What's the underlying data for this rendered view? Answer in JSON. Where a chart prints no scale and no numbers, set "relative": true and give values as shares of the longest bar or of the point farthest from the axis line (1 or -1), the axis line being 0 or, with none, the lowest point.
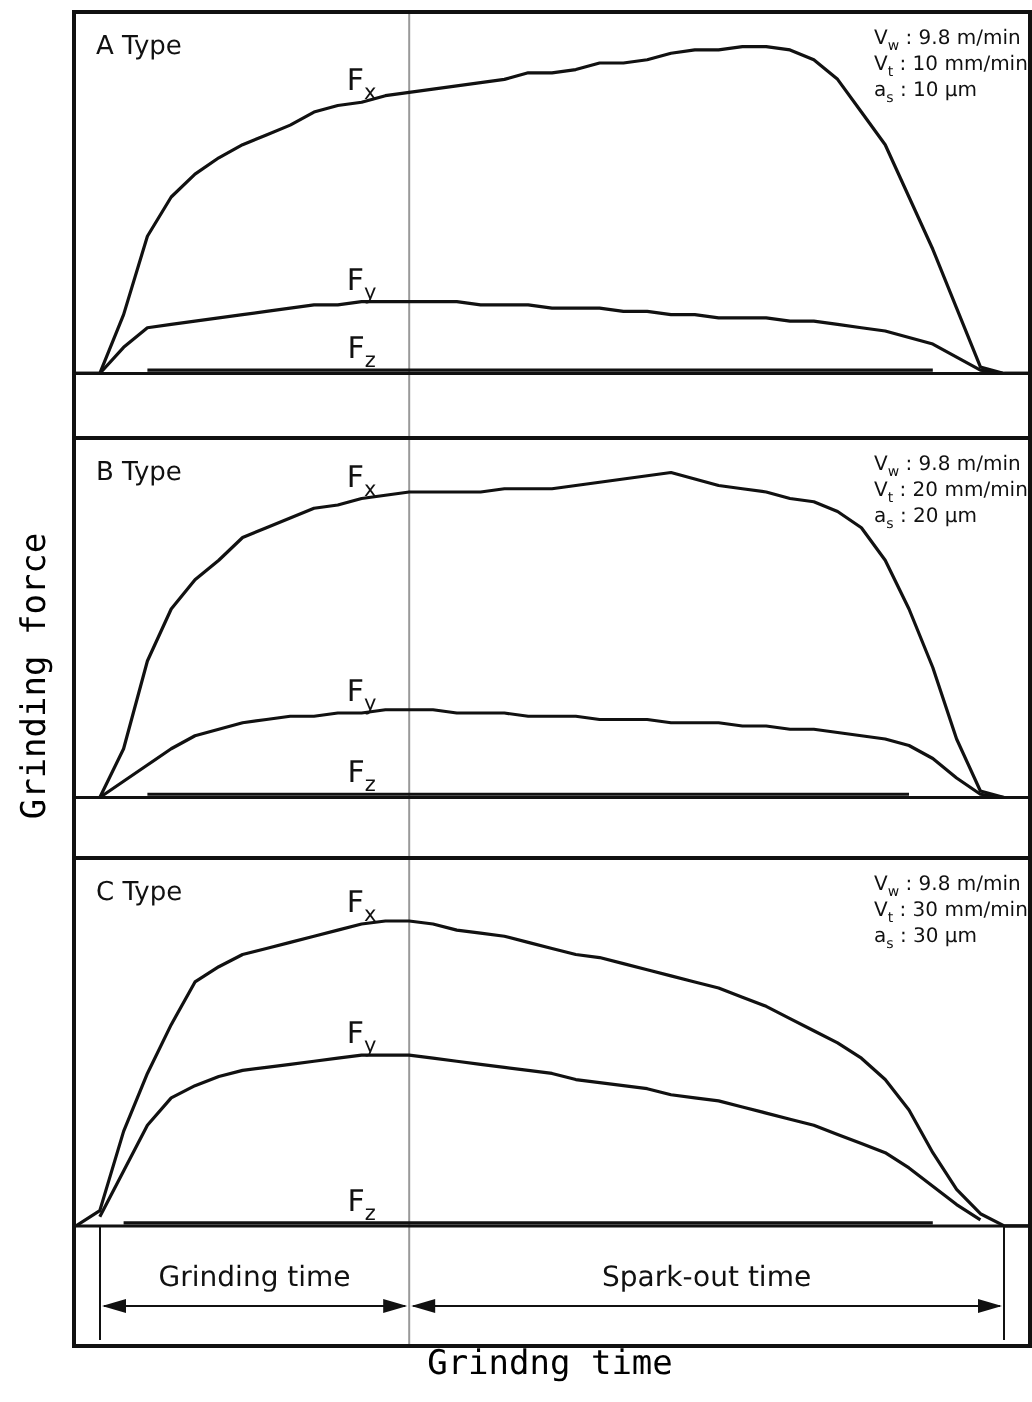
{
  "chart_data": [
    {
      "type": "line",
      "relative": true,
      "legend": false,
      "categories": [
        null,
        null,
        null,
        null,
        null,
        null,
        null,
        null,
        null,
        null,
        null,
        null,
        null,
        null,
        null,
        null,
        null,
        null,
        null,
        null,
        null,
        null,
        null,
        null,
        null,
        null,
        null,
        null,
        null,
        null,
        null,
        null,
        null,
        null,
        null,
        null,
        null,
        null,
        null,
        null,
        null
      ],
      "annotations": [
        "A Type",
        "V$_{w}$ : 9.8 m/min",
        "V$_{t}$ : 10 mm/min",
        "a$_{s}$ : 10 μm"
      ],
      "series": [
        {
          "name": "F$_{x}$",
          "color": "#111111",
          "values": [
            0,
            0,
            0.18,
            0.42,
            0.54,
            0.61,
            0.66,
            0.7,
            0.73,
            0.76,
            0.8,
            0.82,
            0.83,
            0.85,
            0.86,
            0.87,
            0.88,
            0.89,
            0.9,
            0.92,
            0.92,
            0.93,
            0.95,
            0.95,
            0.96,
            0.98,
            0.99,
            0.99,
            1,
            1,
            0.99,
            0.96,
            0.9,
            0.8,
            0.7,
            0.54,
            0.38,
            0.2,
            0.02,
            0,
            0
          ]
        },
        {
          "name": "F$_{y}$",
          "color": "#111111",
          "values": [
            0,
            0,
            0.08,
            0.14,
            0.15,
            0.16,
            0.17,
            0.18,
            0.19,
            0.2,
            0.21,
            0.21,
            0.22,
            0.22,
            0.22,
            0.22,
            0.22,
            0.21,
            0.21,
            0.21,
            0.2,
            0.2,
            0.2,
            0.19,
            0.19,
            0.18,
            0.18,
            0.17,
            0.17,
            0.17,
            0.16,
            0.16,
            0.15,
            0.14,
            0.13,
            0.11,
            0.09,
            0.05,
            0.01,
            0,
            0
          ]
        },
        {
          "name": "F$_{z}$",
          "color": "#111111",
          "values": [
            null,
            null,
            null,
            0.01,
            0.01,
            0.01,
            0.01,
            0.01,
            0.01,
            0.01,
            0.01,
            0.01,
            0.01,
            0.01,
            0.01,
            0.01,
            0.01,
            0.01,
            0.01,
            0.01,
            0.01,
            0.01,
            0.01,
            0.01,
            0.01,
            0.01,
            0.01,
            0.01,
            0.01,
            0.01,
            0.01,
            0.01,
            0.01,
            0.01,
            0.01,
            0.01,
            0.01,
            null,
            null,
            null,
            null
          ]
        }
      ]
    },
    {
      "type": "line",
      "relative": true,
      "legend": false,
      "ylabel": "Grinding force",
      "categories": [
        null,
        null,
        null,
        null,
        null,
        null,
        null,
        null,
        null,
        null,
        null,
        null,
        null,
        null,
        null,
        null,
        null,
        null,
        null,
        null,
        null,
        null,
        null,
        null,
        null,
        null,
        null,
        null,
        null,
        null,
        null,
        null,
        null,
        null,
        null,
        null,
        null,
        null,
        null,
        null,
        null
      ],
      "annotations": [
        "B Type",
        "V$_{w}$ : 9.8 m/min",
        "V$_{t}$ : 20 mm/min",
        "a$_{s}$ : 20 μm"
      ],
      "series": [
        {
          "name": "F$_{x}$",
          "color": "#111111",
          "values": [
            0,
            0,
            0.15,
            0.42,
            0.58,
            0.67,
            0.73,
            0.8,
            0.83,
            0.86,
            0.89,
            0.9,
            0.92,
            0.93,
            0.94,
            0.94,
            0.94,
            0.94,
            0.95,
            0.95,
            0.95,
            0.96,
            0.97,
            0.98,
            0.99,
            1,
            0.98,
            0.96,
            0.95,
            0.94,
            0.92,
            0.91,
            0.88,
            0.83,
            0.73,
            0.58,
            0.4,
            0.18,
            0.02,
            0,
            0
          ]
        },
        {
          "name": "F$_{y}$",
          "color": "#111111",
          "values": [
            0,
            0,
            0.05,
            0.1,
            0.15,
            0.19,
            0.21,
            0.23,
            0.24,
            0.25,
            0.25,
            0.26,
            0.26,
            0.27,
            0.27,
            0.27,
            0.26,
            0.26,
            0.26,
            0.25,
            0.25,
            0.25,
            0.24,
            0.24,
            0.24,
            0.23,
            0.23,
            0.23,
            0.22,
            0.22,
            0.21,
            0.21,
            0.2,
            0.19,
            0.18,
            0.16,
            0.12,
            0.06,
            0.01,
            0,
            0
          ]
        },
        {
          "name": "F$_{z}$",
          "color": "#111111",
          "values": [
            null,
            null,
            null,
            0.01,
            0.01,
            0.01,
            0.01,
            0.01,
            0.01,
            0.01,
            0.01,
            0.01,
            0.01,
            0.01,
            0.01,
            0.01,
            0.01,
            0.01,
            0.01,
            0.01,
            0.01,
            0.01,
            0.01,
            0.01,
            0.01,
            0.01,
            0.01,
            0.01,
            0.01,
            0.01,
            0.01,
            0.01,
            0.01,
            0.01,
            0.01,
            0.01,
            null,
            null,
            null,
            null,
            null
          ]
        }
      ]
    },
    {
      "type": "line",
      "relative": true,
      "legend": false,
      "xlabel": "Grindng time",
      "categories": [
        null,
        null,
        null,
        null,
        null,
        null,
        null,
        null,
        null,
        null,
        null,
        null,
        null,
        null,
        null,
        null,
        null,
        null,
        null,
        null,
        null,
        null,
        null,
        null,
        null,
        null,
        null,
        null,
        null,
        null,
        null,
        null,
        null,
        null,
        null,
        null,
        null,
        null,
        null,
        null,
        null
      ],
      "annotations": [
        "C Type",
        "V$_{w}$ : 9.8 m/min",
        "V$_{t}$ : 30 mm/min",
        "a$_{s}$ : 30 μm",
        "Grinding time",
        "Spark-out time"
      ],
      "series": [
        {
          "name": "F$_{x}$",
          "color": "#111111",
          "values": [
            0,
            0.05,
            0.31,
            0.5,
            0.66,
            0.8,
            0.85,
            0.89,
            0.91,
            0.93,
            0.95,
            0.97,
            0.99,
            1,
            1,
            0.99,
            0.97,
            0.96,
            0.95,
            0.93,
            0.91,
            0.89,
            0.88,
            0.86,
            0.84,
            0.82,
            0.8,
            0.78,
            0.75,
            0.72,
            0.68,
            0.64,
            0.6,
            0.55,
            0.48,
            0.38,
            0.24,
            0.12,
            0.04,
            0,
            0
          ]
        },
        {
          "name": "F$_{y}$",
          "color": "#111111",
          "values": [
            null,
            0.03,
            0.18,
            0.33,
            0.42,
            0.46,
            0.49,
            0.51,
            0.52,
            0.53,
            0.54,
            0.55,
            0.56,
            0.56,
            0.56,
            0.55,
            0.54,
            0.53,
            0.52,
            0.51,
            0.5,
            0.48,
            0.47,
            0.46,
            0.45,
            0.43,
            0.42,
            0.41,
            0.39,
            0.37,
            0.35,
            0.33,
            0.3,
            0.27,
            0.24,
            0.19,
            0.13,
            0.07,
            0.02,
            null,
            null
          ]
        },
        {
          "name": "F$_{z}$",
          "color": "#111111",
          "values": [
            null,
            null,
            0.01,
            0.01,
            0.01,
            0.01,
            0.01,
            0.01,
            0.01,
            0.01,
            0.01,
            0.01,
            0.01,
            0.01,
            0.01,
            0.01,
            0.01,
            0.01,
            0.01,
            0.01,
            0.01,
            0.01,
            0.01,
            0.01,
            0.01,
            0.01,
            0.01,
            0.01,
            0.01,
            0.01,
            0.01,
            0.01,
            0.01,
            0.01,
            0.01,
            0.01,
            0.01,
            null,
            null,
            null,
            null
          ]
        }
      ]
    }
  ]
}
